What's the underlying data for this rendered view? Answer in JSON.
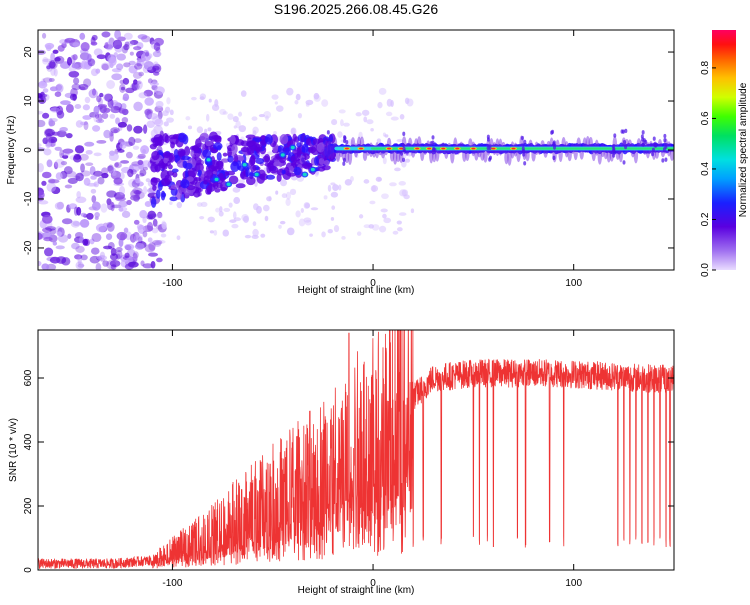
{
  "title": "S196.2025.266.08.45.G26",
  "colors": {
    "snr_line": "#ee3333",
    "axis": "#000000",
    "spectrogram_ridge": "#2fd3e8",
    "spectrogram_peak": "#ff2a2a"
  },
  "chart_data": [
    {
      "type": "heatmap",
      "name": "spectrogram",
      "xlabel": "Height of straight line (km)",
      "ylabel": "Frequency (Hz)",
      "xlim": [
        -167,
        150
      ],
      "ylim": [
        -24.5,
        24.5
      ],
      "xticks": [
        -100,
        0,
        100
      ],
      "yticks": [
        -20,
        -10,
        0,
        10,
        20
      ],
      "colorbar": {
        "label": "Normalized spectral amplitude",
        "range": [
          0,
          0.95
        ],
        "ticks": [
          0.0,
          0.2,
          0.4,
          0.6,
          0.8
        ],
        "colormap": "rainbow (purple=low, red=high)"
      },
      "features": [
        {
          "description": "diffuse low-amplitude scatter",
          "x_range": [
            -167,
            -110
          ],
          "freq_range": [
            -24,
            24
          ]
        },
        {
          "description": "cluster of moderate amplitude blobs",
          "x_range": [
            -110,
            -20
          ],
          "freq_range": [
            -12,
            5
          ]
        },
        {
          "description": "narrow carrier ridge near 0 Hz",
          "x_range": [
            -20,
            150
          ],
          "freq": 0.3,
          "peak_amplitude": 0.9
        }
      ]
    },
    {
      "type": "line",
      "name": "snr",
      "xlabel": "Height of straight line (km)",
      "ylabel": "SNR (10 * v/v)",
      "xlim": [
        -167,
        150
      ],
      "ylim": [
        0,
        750
      ],
      "xticks": [
        -100,
        0,
        100
      ],
      "yticks": [
        0,
        200,
        400,
        600
      ],
      "trend": [
        {
          "x": -167,
          "y": 20
        },
        {
          "x": -130,
          "y": 20
        },
        {
          "x": -110,
          "y": 30
        },
        {
          "x": -90,
          "y": 90
        },
        {
          "x": -70,
          "y": 160
        },
        {
          "x": -50,
          "y": 230
        },
        {
          "x": -30,
          "y": 300
        },
        {
          "x": -10,
          "y": 390
        },
        {
          "x": 10,
          "y": 480
        },
        {
          "x": 20,
          "y": 540
        },
        {
          "x": 30,
          "y": 600
        },
        {
          "x": 50,
          "y": 615
        },
        {
          "x": 90,
          "y": 615
        },
        {
          "x": 120,
          "y": 605
        },
        {
          "x": 150,
          "y": 595
        }
      ],
      "spike": {
        "x": -12,
        "y": 740
      },
      "dropouts_x": [
        20,
        25,
        34,
        50,
        53,
        57,
        60,
        72,
        76,
        88,
        95,
        122,
        125,
        128,
        131,
        134,
        137,
        140,
        143,
        146,
        148
      ]
    }
  ]
}
